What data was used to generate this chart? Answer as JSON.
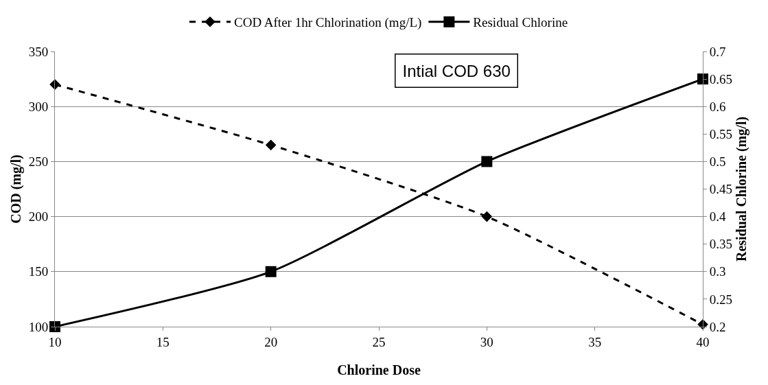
{
  "chart_data": {
    "type": "line",
    "xlabel": "Chlorine Dose",
    "ylabel": "COD (mg/l)",
    "y2label": "Residual Chlorine (mg/l)",
    "x": [
      10,
      20,
      30,
      40
    ],
    "series": [
      {
        "name": "COD After 1hr Chlorination (mg/L)",
        "color": "#000000",
        "values": [
          320,
          265,
          200,
          102
        ],
        "marker": "diamond",
        "line_style": "dashed"
      },
      {
        "name": "Residual Chlorine",
        "color": "#000000",
        "values": [
          0.2,
          0.3,
          0.5,
          0.65
        ],
        "marker": "square",
        "line_style": "solid",
        "axis": "y2"
      }
    ],
    "xlim": [
      10,
      40
    ],
    "xticks": [
      10,
      15,
      20,
      25,
      30,
      35,
      40
    ],
    "ylim": [
      100,
      350
    ],
    "yticks": [
      100,
      150,
      200,
      250,
      300,
      350
    ],
    "y2lim": [
      0.2,
      0.7
    ],
    "y2ticks": [
      0.2,
      0.25,
      0.3,
      0.35,
      0.4,
      0.45,
      0.5,
      0.55,
      0.6,
      0.65,
      0.7
    ],
    "annotations": [
      "Intial COD 630"
    ],
    "grid": "y",
    "legend": "top"
  }
}
